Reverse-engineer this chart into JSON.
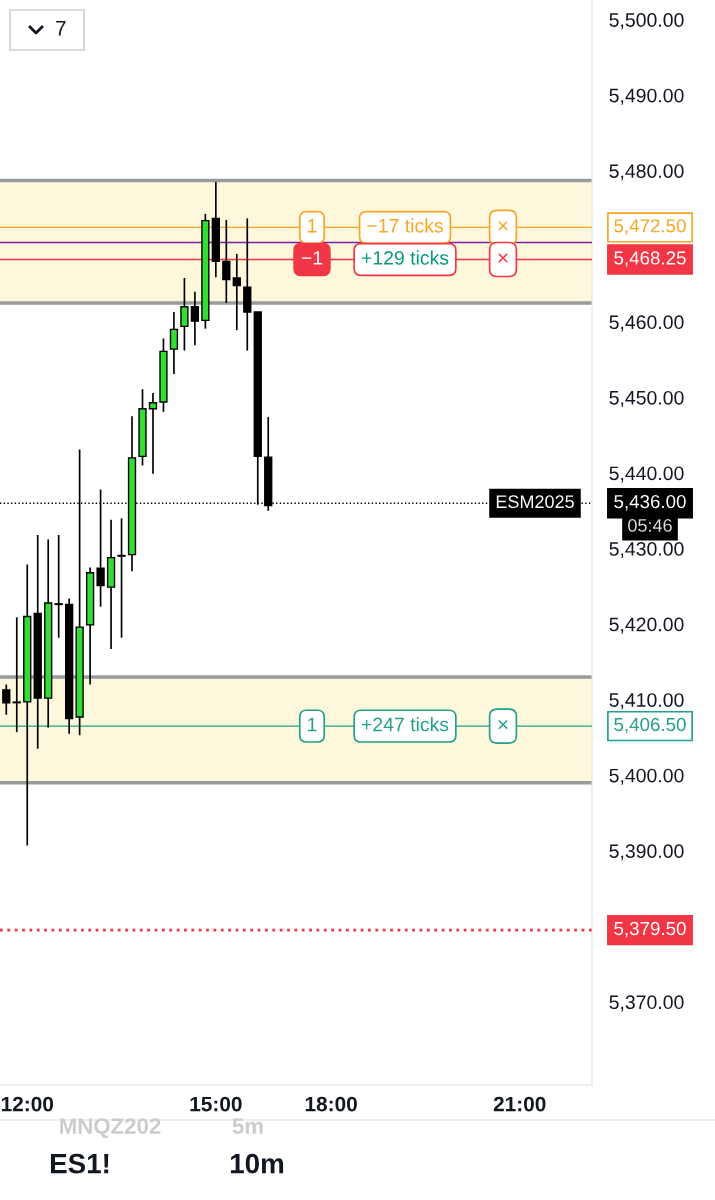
{
  "chart_data": {
    "type": "candlestick",
    "categories": [
      null,
      null,
      "12:00",
      null,
      null,
      null,
      null,
      null,
      null,
      null,
      null,
      null,
      null,
      null,
      null,
      null,
      null,
      null,
      null,
      null,
      "15:00",
      null,
      null,
      null,
      null,
      null,
      null,
      null,
      null,
      null,
      null,
      "18:00",
      null,
      null,
      null,
      null,
      null,
      null,
      null,
      null,
      null,
      null,
      null,
      null,
      null,
      null,
      null,
      null,
      null,
      "21:00",
      null,
      null,
      null,
      null,
      null,
      null
    ],
    "ohlc": [
      [
        5411.3,
        5412.0,
        5408.0,
        5409.6
      ],
      [
        5409.6,
        5420.9,
        5405.7,
        5409.6
      ],
      [
        5409.7,
        5427.9,
        5390.7,
        5421.0
      ],
      [
        5421.4,
        5431.8,
        5403.5,
        5410.2
      ],
      [
        5410.2,
        5431.2,
        5406.3,
        5422.8
      ],
      [
        5422.6,
        5431.8,
        5418.2,
        5422.6
      ],
      [
        5422.6,
        5423.4,
        5405.5,
        5407.5
      ],
      [
        5407.7,
        5443.1,
        5405.3,
        5419.6
      ],
      [
        5419.9,
        5427.5,
        5412.0,
        5426.8
      ],
      [
        5427.4,
        5437.8,
        5422.3,
        5425.1
      ],
      [
        5424.9,
        5433.8,
        5416.7,
        5428.8
      ],
      [
        5429.0,
        5434.0,
        5418.2,
        5429.0
      ],
      [
        5429.2,
        5447.5,
        5427.0,
        5442.0
      ],
      [
        5442.2,
        5451.1,
        5441.0,
        5448.5
      ],
      [
        5448.5,
        5450.6,
        5439.9,
        5449.3
      ],
      [
        5449.4,
        5457.8,
        5448.1,
        5456.1
      ],
      [
        5456.4,
        5461.3,
        5453.1,
        5459.0
      ],
      [
        5459.4,
        5465.8,
        5456.2,
        5462.0
      ],
      [
        5462.0,
        5464.0,
        5456.9,
        5460.1
      ],
      [
        5460.2,
        5474.3,
        5459.1,
        5473.4
      ],
      [
        5473.7,
        5478.5,
        5465.9,
        5468.0
      ],
      [
        5468.0,
        5473.5,
        5462.5,
        5465.6
      ],
      [
        5465.8,
        5469.0,
        5458.9,
        5464.8
      ],
      [
        5464.6,
        5473.7,
        5456.2,
        5461.3
      ],
      [
        5461.3,
        5461.3,
        5435.8,
        5442.2
      ],
      [
        5442.1,
        5447.4,
        5435.0,
        5435.7
      ],
      null,
      null,
      null,
      null,
      null,
      null,
      null,
      null,
      null,
      null,
      null,
      null,
      null,
      null,
      null,
      null,
      null,
      null,
      null,
      null,
      null,
      null,
      null,
      null,
      null,
      null,
      null,
      null,
      null,
      null
    ],
    "colors": [
      "#000000",
      "#000000",
      "#33dd33",
      "#000000",
      "#33dd33",
      "#000000",
      "#000000",
      "#33dd33",
      "#33dd33",
      "#000000",
      "#33dd33",
      "#33dd33",
      "#33dd33",
      "#33dd33",
      "#33dd33",
      "#33dd33",
      "#33dd33",
      "#33dd33",
      "#000000",
      "#33dd33",
      "#000000",
      "#000000",
      "#000000",
      "#000000",
      "#000000",
      "#000000",
      null,
      null,
      null,
      null,
      null,
      null,
      null,
      null,
      null,
      null,
      null,
      null,
      null,
      null,
      null,
      null,
      null,
      null,
      null,
      null,
      null,
      null,
      null,
      null,
      null,
      null,
      null,
      null,
      null,
      null
    ],
    "ylim": [
      5359.0,
      5502.6
    ],
    "yticks": [
      {
        "value": 5370,
        "label": "5,370.00"
      },
      {
        "value": 5380,
        "label": null
      },
      {
        "value": 5390,
        "label": "5,390.00"
      },
      {
        "value": 5400,
        "label": "5,400.00"
      },
      {
        "value": 5410,
        "label": "5,410.00"
      },
      {
        "value": 5420,
        "label": "5,420.00"
      },
      {
        "value": 5430,
        "label": "5,430.00"
      },
      {
        "value": 5440,
        "label": "5,440.00"
      },
      {
        "value": 5450,
        "label": "5,450.00"
      },
      {
        "value": 5460,
        "label": "5,460.00"
      },
      {
        "value": 5470,
        "label": null
      },
      {
        "value": 5480,
        "label": "5,480.00"
      },
      {
        "value": 5490,
        "label": "5,490.00"
      },
      {
        "value": 5500,
        "label": "5,500.00"
      }
    ],
    "bands": [
      {
        "axis": "y",
        "from": 5462.5,
        "to": 5478.7,
        "color": "#fdf8dc"
      },
      {
        "axis": "y",
        "from": 5399.0,
        "to": 5413.0,
        "color": "#fdf8dc"
      }
    ],
    "ref_lines": [
      {
        "axis": "y",
        "value": 5472.5,
        "label": "5,472.50",
        "color": "#f5a623",
        "line_style": "solid"
      },
      {
        "axis": "y",
        "value": 5470.5,
        "label": null,
        "color": "#7b1fa2",
        "line_style": "solid"
      },
      {
        "axis": "y",
        "value": 5468.25,
        "label": "5,468.25",
        "color": "#f23645",
        "line_style": "solid"
      },
      {
        "axis": "y",
        "value": 5436.0,
        "label": "5,436.00",
        "color": "#000000",
        "line_style": "dotted"
      },
      {
        "axis": "y",
        "value": 5406.5,
        "label": "5,406.50",
        "color": "#22a08a",
        "line_style": "solid"
      },
      {
        "axis": "y",
        "value": 5379.5,
        "label": "5,379.50",
        "color": "#f23645",
        "line_style": "dotted"
      }
    ],
    "annotations": [
      {
        "text": "1",
        "y": 5472.5
      },
      {
        "text": "−17 ticks",
        "y": 5472.5
      },
      {
        "text": "×",
        "y": 5472.5
      },
      {
        "text": "−1",
        "y": 5468.25
      },
      {
        "text": "+129 ticks",
        "y": 5468.25
      },
      {
        "text": "×",
        "y": 5468.25
      },
      {
        "text": "1",
        "y": 5406.5
      },
      {
        "text": "+247 ticks",
        "y": 5406.5
      },
      {
        "text": "×",
        "y": 5406.5
      },
      {
        "text": "ESM2025",
        "y": 5436.0
      },
      "7",
      "MNQZ202",
      "5m",
      "ES1!",
      "10m",
      "05:46"
    ],
    "grid": false,
    "legend": false
  }
}
